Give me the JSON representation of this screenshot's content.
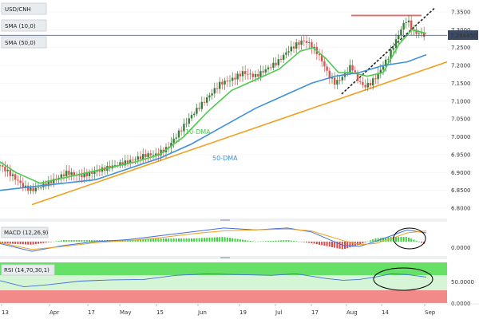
{
  "chart_data": {
    "type": "candlestick",
    "symbol": "USD/CNH",
    "indicators": {
      "sma10": {
        "label": "SMA (10,0)",
        "color": "#4ec94e"
      },
      "sma50": {
        "label": "SMA (50,0)",
        "color": "#3f8fd9"
      }
    },
    "annotations": {
      "sma10": "10-DMA",
      "sma50": "50-DMA"
    },
    "last_price": "7.284450",
    "price_axis": {
      "ticks": [
        "7.3500",
        "7.3000",
        "7.2500",
        "7.2000",
        "7.1500",
        "7.1000",
        "7.0500",
        "7.0000",
        "6.9500",
        "6.9000",
        "6.8500",
        "6.8000"
      ],
      "ylim": [
        6.78,
        7.37
      ]
    },
    "x_axis": {
      "labels": [
        "13",
        "Apr",
        "17",
        "May",
        "15",
        "Jun",
        "19",
        "Jul",
        "17",
        "Aug",
        "14",
        "Sep"
      ]
    },
    "price_path": [
      [
        0,
        6.92
      ],
      [
        8,
        6.89
      ],
      [
        15,
        6.86
      ],
      [
        20,
        6.85
      ],
      [
        30,
        6.87
      ],
      [
        42,
        6.9
      ],
      [
        50,
        6.89
      ],
      [
        58,
        6.9
      ],
      [
        65,
        6.91
      ],
      [
        72,
        6.92
      ],
      [
        80,
        6.93
      ],
      [
        86,
        6.94
      ],
      [
        92,
        6.95
      ],
      [
        98,
        6.95
      ],
      [
        105,
        6.97
      ],
      [
        110,
        7.0
      ],
      [
        115,
        7.03
      ],
      [
        120,
        7.06
      ],
      [
        126,
        7.09
      ],
      [
        132,
        7.12
      ],
      [
        138,
        7.15
      ],
      [
        145,
        7.16
      ],
      [
        152,
        7.18
      ],
      [
        160,
        7.17
      ],
      [
        167,
        7.19
      ],
      [
        174,
        7.21
      ],
      [
        180,
        7.24
      ],
      [
        186,
        7.26
      ],
      [
        190,
        7.27
      ],
      [
        194,
        7.26
      ],
      [
        198,
        7.24
      ],
      [
        202,
        7.21
      ],
      [
        206,
        7.17
      ],
      [
        210,
        7.15
      ],
      [
        215,
        7.17
      ],
      [
        220,
        7.2
      ],
      [
        224,
        7.16
      ],
      [
        228,
        7.14
      ],
      [
        232,
        7.15
      ],
      [
        236,
        7.17
      ],
      [
        240,
        7.2
      ],
      [
        244,
        7.23
      ],
      [
        248,
        7.27
      ],
      [
        252,
        7.31
      ],
      [
        255,
        7.33
      ],
      [
        258,
        7.3
      ],
      [
        261,
        7.29
      ],
      [
        264,
        7.29
      ],
      [
        267,
        7.28
      ]
    ],
    "sma10": [
      [
        0,
        6.93
      ],
      [
        10,
        6.9
      ],
      [
        25,
        6.87
      ],
      [
        45,
        6.89
      ],
      [
        65,
        6.91
      ],
      [
        85,
        6.93
      ],
      [
        100,
        6.95
      ],
      [
        115,
        7.0
      ],
      [
        130,
        7.07
      ],
      [
        145,
        7.13
      ],
      [
        160,
        7.16
      ],
      [
        175,
        7.19
      ],
      [
        188,
        7.24
      ],
      [
        196,
        7.25
      ],
      [
        204,
        7.22
      ],
      [
        212,
        7.18
      ],
      [
        220,
        7.18
      ],
      [
        230,
        7.17
      ],
      [
        240,
        7.18
      ],
      [
        250,
        7.26
      ],
      [
        258,
        7.3
      ],
      [
        267,
        7.29
      ]
    ],
    "sma50": [
      [
        0,
        6.85
      ],
      [
        20,
        6.86
      ],
      [
        40,
        6.87
      ],
      [
        60,
        6.88
      ],
      [
        80,
        6.91
      ],
      [
        100,
        6.94
      ],
      [
        120,
        6.98
      ],
      [
        140,
        7.03
      ],
      [
        160,
        7.08
      ],
      [
        180,
        7.12
      ],
      [
        195,
        7.15
      ],
      [
        210,
        7.17
      ],
      [
        225,
        7.18
      ],
      [
        240,
        7.2
      ],
      [
        255,
        7.21
      ],
      [
        267,
        7.23
      ]
    ],
    "trendlines": [
      {
        "name": "support-orange",
        "color": "#f0a020",
        "style": "solid",
        "points": [
          [
            20,
            6.81
          ],
          [
            280,
            7.21
          ]
        ]
      },
      {
        "name": "support-dashed",
        "color": "#222222",
        "style": "dashed",
        "points": [
          [
            214,
            7.12
          ],
          [
            272,
            7.36
          ]
        ]
      },
      {
        "name": "resistance-red",
        "color": "#e26a6a",
        "style": "solid",
        "points": [
          [
            220,
            7.34
          ],
          [
            264,
            7.34
          ]
        ]
      }
    ],
    "macd": {
      "label": "MACD (12,26,9)",
      "tick": "0.0000",
      "macd": [
        [
          0,
          -0.002
        ],
        [
          20,
          -0.01
        ],
        [
          40,
          -0.004
        ],
        [
          60,
          0.0
        ],
        [
          80,
          0.002
        ],
        [
          100,
          0.006
        ],
        [
          120,
          0.01
        ],
        [
          140,
          0.014
        ],
        [
          160,
          0.012
        ],
        [
          180,
          0.014
        ],
        [
          195,
          0.01
        ],
        [
          205,
          0.003
        ],
        [
          215,
          -0.004
        ],
        [
          225,
          -0.005
        ],
        [
          235,
          0.0
        ],
        [
          245,
          0.006
        ],
        [
          255,
          0.012
        ],
        [
          267,
          0.009
        ]
      ],
      "signal": [
        [
          0,
          -0.001
        ],
        [
          20,
          -0.008
        ],
        [
          40,
          -0.005
        ],
        [
          60,
          -0.001
        ],
        [
          80,
          0.001
        ],
        [
          100,
          0.004
        ],
        [
          120,
          0.008
        ],
        [
          140,
          0.011
        ],
        [
          160,
          0.012
        ],
        [
          180,
          0.013
        ],
        [
          195,
          0.011
        ],
        [
          205,
          0.006
        ],
        [
          215,
          0.001
        ],
        [
          225,
          -0.003
        ],
        [
          235,
          -0.002
        ],
        [
          245,
          0.003
        ],
        [
          255,
          0.009
        ],
        [
          267,
          0.011
        ]
      ]
    },
    "rsi": {
      "label": "RSI (14,70,30,1)",
      "ticks": [
        "50.0000",
        "0.0000"
      ],
      "ylim": [
        0,
        100
      ],
      "values": [
        [
          0,
          55
        ],
        [
          15,
          40
        ],
        [
          30,
          45
        ],
        [
          50,
          54
        ],
        [
          70,
          57
        ],
        [
          90,
          58
        ],
        [
          110,
          68
        ],
        [
          130,
          72
        ],
        [
          150,
          70
        ],
        [
          170,
          68
        ],
        [
          185,
          72
        ],
        [
          195,
          66
        ],
        [
          205,
          60
        ],
        [
          215,
          56
        ],
        [
          225,
          58
        ],
        [
          235,
          64
        ],
        [
          245,
          72
        ],
        [
          255,
          70
        ],
        [
          267,
          64
        ]
      ]
    }
  }
}
